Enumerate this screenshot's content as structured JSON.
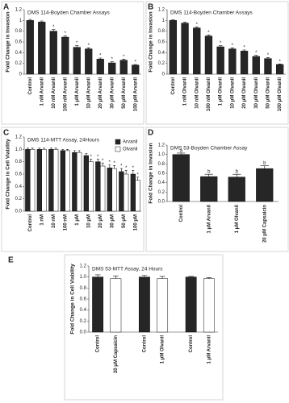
{
  "chart_data": [
    {
      "type": "bar",
      "panel": "A",
      "title": "DMS 114-Boyden Chamber Assays",
      "y_label": "Fold Change in Invasion",
      "categories": [
        "Control",
        "1 nM Arvanil",
        "10 nM Arvanil",
        "100 nM Arvanil",
        "1 μM Arvanil",
        "10 μM Arvanil",
        "20 μM Arvanil",
        "30 μM Arvanil",
        "50 μM Arvanil",
        "100 μM Arvanil"
      ],
      "values": [
        1.0,
        0.97,
        0.8,
        0.69,
        0.5,
        0.47,
        0.28,
        0.21,
        0.26,
        0.17
      ],
      "errors": [
        0.02,
        0.02,
        0.03,
        0.02,
        0.03,
        0.02,
        0.02,
        0.02,
        0.02,
        0.01
      ],
      "annotations": [
        null,
        null,
        "*",
        "*",
        "*",
        "*",
        "*",
        "*",
        "*",
        "*"
      ],
      "color": "#262626",
      "ylim": [
        0,
        1.2
      ],
      "yticks": [
        0,
        0.2,
        0.4,
        0.6,
        0.8,
        1,
        1.2
      ]
    },
    {
      "type": "bar",
      "panel": "B",
      "title": "DMS 114-Boyden Chamber Assays",
      "y_label": "Fold Change in Invasion",
      "categories": [
        "Control",
        "1 nM Olvanil",
        "10 nM Olvanil",
        "100 nM Olvanil",
        "1 μM Olvanil",
        "10 μM Olvanil",
        "20 μM Olvanil",
        "30 μM Olvanil",
        "50 μM Olvanil",
        "100 μM Olvanil"
      ],
      "values": [
        1.0,
        0.95,
        0.86,
        0.71,
        0.51,
        0.47,
        0.43,
        0.33,
        0.29,
        0.18
      ],
      "errors": [
        0.01,
        0.02,
        0.02,
        0.02,
        0.02,
        0.02,
        0.02,
        0.02,
        0.02,
        0.01
      ],
      "annotations": [
        null,
        null,
        "*",
        "*",
        "*",
        "*",
        "*",
        "*",
        "*",
        "*"
      ],
      "color": "#262626",
      "ylim": [
        0,
        1.2
      ],
      "yticks": [
        0,
        0.2,
        0.4,
        0.6,
        0.8,
        1,
        1.2
      ]
    },
    {
      "type": "grouped_bar",
      "panel": "C",
      "title": "DMS 114-MTT Assay, 24Hours",
      "y_label": "Fold Change in Cell Viability",
      "categories": [
        "Control",
        "1 nM",
        "10 nM",
        "100 nM",
        "1 μM",
        "10 μM",
        "20 μM",
        "30 μM",
        "50 μM",
        "100 μM"
      ],
      "series": [
        {
          "name": "Arvanil",
          "color": "#262626",
          "values": [
            1.0,
            1.0,
            1.0,
            0.98,
            0.95,
            0.9,
            0.8,
            0.7,
            0.64,
            0.6
          ],
          "errors": [
            0.02,
            0.02,
            0.02,
            0.02,
            0.03,
            0.03,
            0.04,
            0.05,
            0.05,
            0.06
          ],
          "annotations": [
            null,
            null,
            null,
            null,
            null,
            null,
            "*",
            "*",
            "*",
            "*"
          ]
        },
        {
          "name": "Olvanil",
          "color": "#ffffff",
          "values": [
            1.0,
            1.0,
            1.0,
            0.98,
            0.95,
            0.8,
            0.73,
            0.69,
            0.6,
            0.5
          ],
          "errors": [
            0.02,
            0.02,
            0.02,
            0.02,
            0.03,
            0.04,
            0.05,
            0.05,
            0.06,
            0.05
          ],
          "annotations": [
            null,
            null,
            null,
            null,
            null,
            "*",
            "*",
            "*",
            "*",
            "*"
          ]
        }
      ],
      "legend": "top-right",
      "ylim": [
        0,
        1.2
      ],
      "yticks": [
        {
          "value": 0,
          "label": "0.0"
        },
        {
          "value": 0.2,
          "label": "0.2"
        },
        {
          "value": 0.4,
          "label": "0.4"
        },
        {
          "value": 0.6,
          "label": "0.6"
        },
        {
          "value": 0.8,
          "label": "0.8"
        },
        {
          "value": 1,
          "label": "1.0"
        },
        {
          "value": 1.2,
          "label": "1.2"
        }
      ]
    },
    {
      "type": "bar",
      "panel": "D",
      "title": "DMS 53-Boyden Chamber Assay",
      "y_label": "Fold Change in Invasion",
      "categories": [
        "Control",
        "1 μM Arvanil",
        "1 μM Olvanil",
        "20 μM Capsaicin"
      ],
      "values": [
        1.0,
        0.53,
        0.52,
        0.7
      ],
      "errors": [
        0.03,
        0.05,
        0.06,
        0.06
      ],
      "annotations": [
        "a",
        "b",
        "b",
        "b"
      ],
      "color": "#262626",
      "ylim": [
        0,
        1.2
      ],
      "yticks": [
        {
          "value": 0,
          "label": "0.0"
        },
        {
          "value": 0.2,
          "label": "0.2"
        },
        {
          "value": 0.4,
          "label": "0.4"
        },
        {
          "value": 0.6,
          "label": "0.6"
        },
        {
          "value": 0.8,
          "label": "0.8"
        },
        {
          "value": 1,
          "label": "1.0"
        },
        {
          "value": 1.2,
          "label": "1.2"
        }
      ]
    },
    {
      "type": "bar",
      "panel": "E",
      "title": "DMS 53-MTT Assay, 24 Hours",
      "y_label": "Fold Change in Cell Viability",
      "categories": [
        "Control",
        "20 μM Capsaicin",
        "Control",
        "1 μM Olvanil",
        "Control",
        "1 μM Arvanil"
      ],
      "values": [
        1.0,
        0.97,
        1.0,
        0.97,
        1.0,
        0.97
      ],
      "errors": [
        0.04,
        0.05,
        0.03,
        0.04,
        0.01,
        0.02
      ],
      "colors": [
        "#262626",
        "#ffffff",
        "#262626",
        "#ffffff",
        "#262626",
        "#ffffff"
      ],
      "ylim": [
        0,
        1.2
      ],
      "yticks": [
        {
          "value": 0,
          "label": "0.0"
        },
        {
          "value": 0.2,
          "label": "0.2"
        },
        {
          "value": 0.4,
          "label": "0.4"
        },
        {
          "value": 0.6,
          "label": "0.6"
        },
        {
          "value": 0.8,
          "label": "0.8"
        },
        {
          "value": 1,
          "label": "1.0"
        },
        {
          "value": 1.2,
          "label": "1.2"
        }
      ]
    }
  ]
}
